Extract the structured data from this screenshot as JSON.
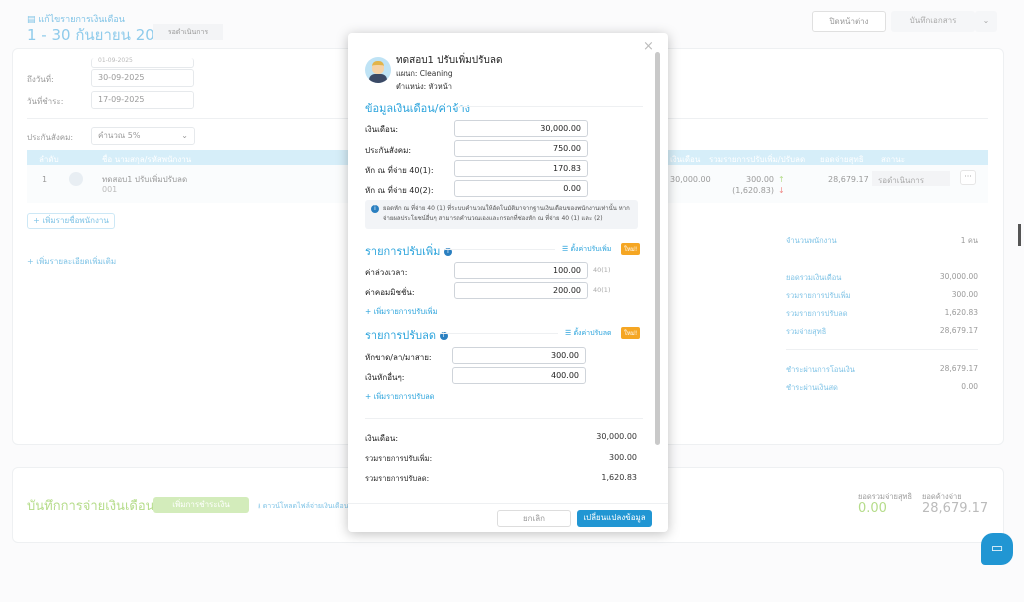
{
  "header": {
    "subtitle": "แก้ไขรายการเงินเดือน",
    "period": "1 - 30 กันยายน 2025",
    "status": "รอดำเนินการ",
    "close_label": "ปิดหน้าต่าง",
    "save_label": "บันทึกเอกสาร"
  },
  "form": {
    "start_date": "01-09-2025",
    "end_label": "ถึงวันที่:",
    "end_date": "30-09-2025",
    "pay_label": "วันที่ชำระ:",
    "pay_date": "17-09-2025",
    "ss_label": "ประกันสังคม:",
    "ss_value": "คำนวณ 5%"
  },
  "table": {
    "headers": [
      "ลำดับ",
      "ชื่อ นามสกุล/รหัสพนักงาน",
      "เงินเดือน",
      "รวมรายการปรับเพิ่ม/ปรับลด",
      "ยอดจ่ายสุทธิ",
      "สถานะ"
    ],
    "rows": [
      {
        "no": "1",
        "name": "ทดสอบ1 ปรับเพิ่มปรับลด",
        "code": "001",
        "salary": "30,000.00",
        "add": "300.00",
        "deduct": "(1,620.83)",
        "net": "28,679.17",
        "status": "รอดำเนินการ"
      }
    ]
  },
  "add_employee": "+ เพิ่มรายชื่อพนักงาน",
  "add_details": "+ เพิ่มรายละเอียดเพิ่มเติม",
  "summary": {
    "count_label": "จำนวนพนักงาน",
    "count": "1 คน",
    "rows": [
      {
        "label": "ยอดรวมเงินเดือน",
        "value": "30,000.00"
      },
      {
        "label": "รวมรายการปรับเพิ่ม",
        "value": "300.00"
      },
      {
        "label": "รวมรายการปรับลด",
        "value": "1,620.83"
      },
      {
        "label": "รวมจ่ายสุทธิ",
        "value": "28,679.17"
      }
    ],
    "pay_rows": [
      {
        "label": "ชำระผ่านการโอนเงิน",
        "value": "28,679.17"
      },
      {
        "label": "ชำระผ่านเงินสด",
        "value": "0.00"
      }
    ]
  },
  "payment": {
    "title": "บันทึกการจ่ายเงินเดือน",
    "add_label": "เพิ่มการชำระเงิน",
    "download_label": "ดาวน์โหลดไฟล์จ่ายเงินเดือน",
    "net_label": "ยอดรวมจ่ายสุทธิ",
    "net_value": "0.00",
    "due_label": "ยอดค้างจ่าย",
    "due_value": "28,679.17"
  },
  "modal": {
    "name": "ทดสอบ1 ปรับเพิ่มปรับลด",
    "department": "แผนก: Cleaning",
    "position": "ตำแหน่ง: หัวหน้า",
    "salary_section": "ข้อมูลเงินเดือน/ค่าจ้าง",
    "fields": [
      {
        "label": "เงินเดือน:",
        "value": "30,000.00"
      },
      {
        "label": "ประกันสังคม:",
        "value": "750.00"
      },
      {
        "label": "หัก ณ ที่จ่าย 40(1):",
        "value": "170.83"
      },
      {
        "label": "หัก ณ ที่จ่าย 40(2):",
        "value": "0.00"
      }
    ],
    "info": "ยอดหัก ณ ที่จ่าย 40 (1) ที่ระบบคำนวณให้อัตโนมัติมาจากฐานเงินเดือนของพนักงานเท่านั้น หากจ่ายผลประโยชน์อื่นๆ สามารถคำนวณเองและกรอกที่ช่องหัก ณ ที่จ่าย 40 (1) และ (2)",
    "add_section": "รายการปรับเพิ่ม",
    "add_settings": "ตั้งค่าปรับเพิ่ม",
    "new_badge": "ใหม่!",
    "add_items": [
      {
        "label": "ค่าล่วงเวลา:",
        "value": "100.00",
        "tag": "40(1)"
      },
      {
        "label": "ค่าคอมมิชชั่น:",
        "value": "200.00",
        "tag": "40(1)"
      }
    ],
    "add_more": "+ เพิ่มรายการปรับเพิ่ม",
    "deduct_section": "รายการปรับลด",
    "deduct_settings": "ตั้งค่าปรับลด",
    "deduct_items": [
      {
        "label": "หักขาด/ลา/มาสาย:",
        "value": "300.00"
      },
      {
        "label": "เงินหักอื่นๆ:",
        "value": "400.00"
      }
    ],
    "deduct_more": "+ เพิ่มรายการปรับลด",
    "totals": [
      {
        "label": "เงินเดือน:",
        "value": "30,000.00"
      },
      {
        "label": "รวมรายการปรับเพิ่ม:",
        "value": "300.00"
      },
      {
        "label": "รวมรายการปรับลด:",
        "value": "1,620.83"
      }
    ],
    "cancel": "ยกเลิก",
    "submit": "เปลี่ยนแปลงข้อมูล"
  },
  "colors": {
    "accent": "#2aa3dc",
    "primary": "#2196d3",
    "badge": "#f5a623",
    "positive": "#8cc63f",
    "negative": "#e53935"
  }
}
